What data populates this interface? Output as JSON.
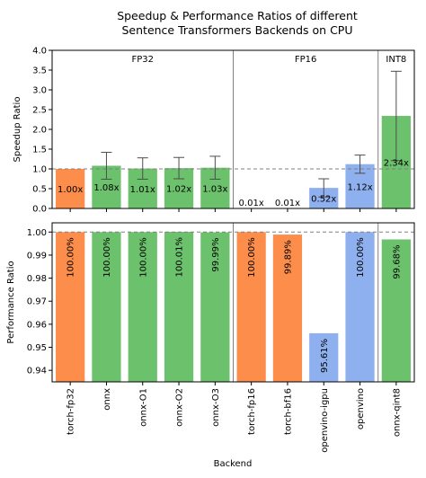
{
  "chart_data": {
    "type": "bar",
    "title_lines": [
      "Speedup & Performance Ratios of different",
      "Sentence Transformers Backends on CPU"
    ],
    "xlabel": "Backend",
    "categories": [
      "torch-fp32",
      "onnx",
      "onnx-O1",
      "onnx-O2",
      "onnx-O3",
      "torch-fp16",
      "torch-bf16",
      "openvino-igpu",
      "openvino",
      "onnx-qint8"
    ],
    "groups": [
      {
        "label": "FP32",
        "start": 0,
        "end": 4
      },
      {
        "label": "FP16",
        "start": 5,
        "end": 8
      },
      {
        "label": "INT8",
        "start": 9,
        "end": 9
      }
    ],
    "colors": {
      "torch": "#fc8d4a",
      "onnx": "#6cc16d",
      "openvino": "#8fb0ee",
      "reference_line": "#808080",
      "errorbar": "#4d4d4d"
    },
    "bar_colors": [
      "torch",
      "onnx",
      "onnx",
      "onnx",
      "onnx",
      "torch",
      "torch",
      "openvino",
      "openvino",
      "onnx"
    ],
    "panels": [
      {
        "id": "speedup",
        "ylabel": "Speedup Ratio",
        "ylim": [
          0.0,
          4.0
        ],
        "yticks": [
          0.0,
          0.5,
          1.0,
          1.5,
          2.0,
          2.5,
          3.0,
          3.5,
          4.0
        ],
        "ytick_labels": [
          "0.0",
          "0.5",
          "1.0",
          "1.5",
          "2.0",
          "2.5",
          "3.0",
          "3.5",
          "4.0"
        ],
        "reference": 1.0,
        "values": [
          1.0,
          1.08,
          1.01,
          1.02,
          1.03,
          0.01,
          0.01,
          0.52,
          1.12,
          2.34
        ],
        "errors": [
          null,
          0.34,
          0.27,
          0.27,
          0.29,
          null,
          null,
          0.23,
          0.23,
          1.13
        ],
        "labels": [
          "1.00x",
          "1.08x",
          "1.01x",
          "1.02x",
          "1.03x",
          "0.01x",
          "0.01x",
          "0.52x",
          "1.12x",
          "2.34x"
        ]
      },
      {
        "id": "performance",
        "ylabel": "Performance Ratio",
        "ylim": [
          0.935,
          1.004
        ],
        "yticks": [
          0.94,
          0.95,
          0.96,
          0.97,
          0.98,
          0.99,
          1.0
        ],
        "ytick_labels": [
          "0.94",
          "0.95",
          "0.96",
          "0.97",
          "0.98",
          "0.99",
          "1.00"
        ],
        "reference": 1.0,
        "values": [
          1.0,
          1.0,
          1.0,
          1.0001,
          0.9999,
          1.0,
          0.9989,
          0.9561,
          1.0,
          0.9968
        ],
        "labels": [
          "100.00%",
          "100.00%",
          "100.00%",
          "100.01%",
          "99.99%",
          "100.00%",
          "99.89%",
          "95.61%",
          "100.00%",
          "99.68%"
        ]
      }
    ]
  }
}
